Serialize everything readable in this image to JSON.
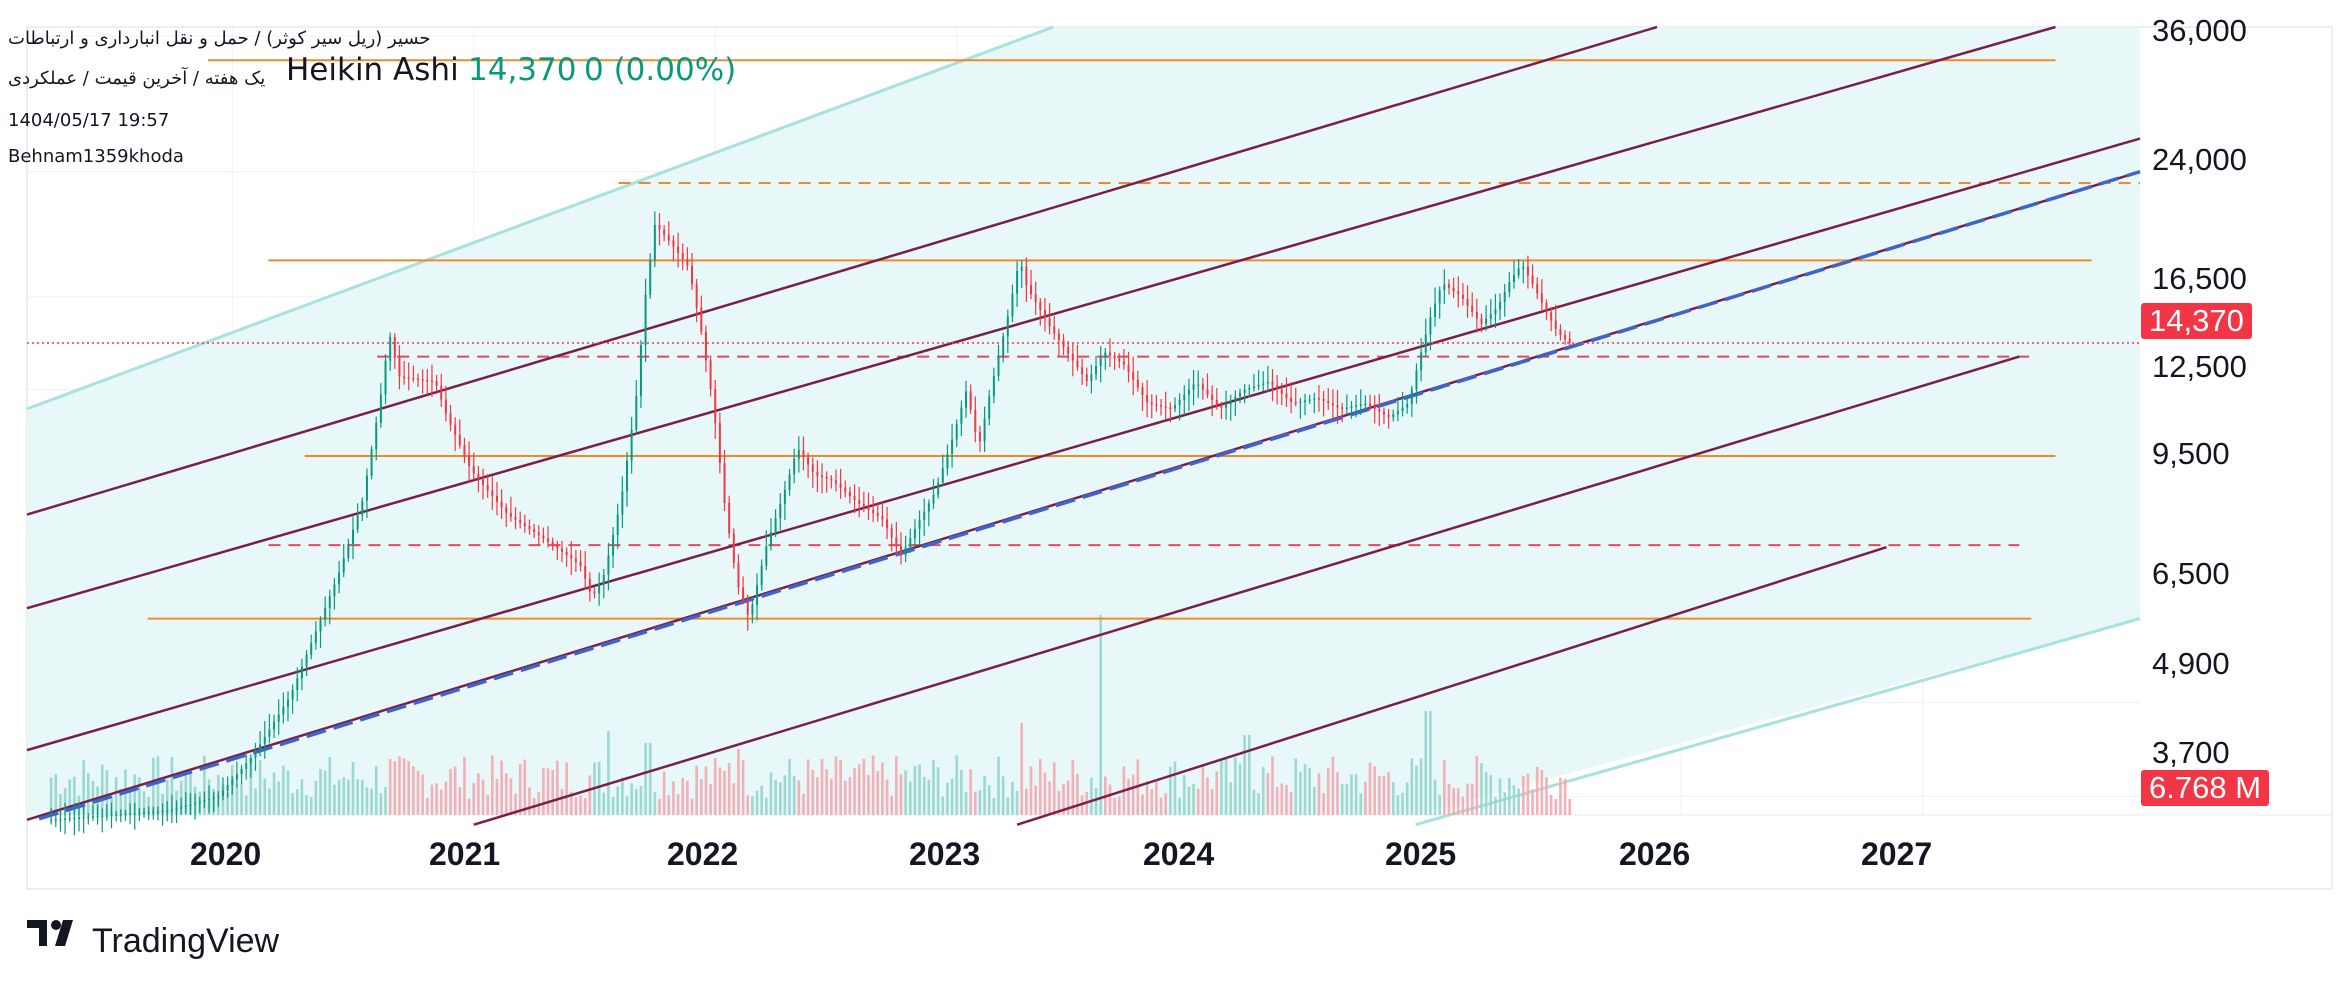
{
  "header": {
    "title_line1": "حسیر (ریل سیر کوثر) / حمل و نقل انبارداری و ارتباطات",
    "title_line2": "یک هفته / آخرین قیمت / عملکردی",
    "style": "Heikin Ashi",
    "last": "14,370",
    "change": "0 (0.00%)",
    "timestamp": "1404/05/17 19:57",
    "author": "Behnam1359khoda"
  },
  "price_tag": "14,370",
  "volume_tag": "6.768 M",
  "footer": {
    "brand": "TradingView"
  },
  "colors": {
    "up": "#089981",
    "down": "#f23645",
    "channel_fill": "#e8f8f8",
    "channel_border": "#a8e2dd",
    "channel_lines": "#7b1f4a",
    "horizontal_levels": "#ef8a2a",
    "dashed_levels": "#e04a5a",
    "trend_dashed": "#3f63c9"
  },
  "chart_data": {
    "type": "candlestick",
    "style": "Heikin Ashi",
    "interval": "1 week",
    "scale": "log",
    "y_ticks": [
      "36,000",
      "24,000",
      "16,500",
      "12,500",
      "9,500",
      "6,500",
      "4,900",
      "3,700"
    ],
    "y_tick_values": [
      36000,
      24000,
      16500,
      12500,
      9500,
      6500,
      4900,
      3700
    ],
    "x_ticks": [
      "2020",
      "2021",
      "2022",
      "2023",
      "2024",
      "2025",
      "2026",
      "2027"
    ],
    "x_tick_values": [
      2020,
      2021,
      2022,
      2023,
      2024,
      2025,
      2026,
      2027
    ],
    "xlim": [
      2019.15,
      2027.9
    ],
    "ylim": [
      3500,
      37000
    ],
    "last_price": 14370,
    "volume_last": "6.768 M",
    "price_path": [
      [
        2019.25,
        3450
      ],
      [
        2019.5,
        3500
      ],
      [
        2019.75,
        3550
      ],
      [
        2019.95,
        3700
      ],
      [
        2020.1,
        4200
      ],
      [
        2020.25,
        5000
      ],
      [
        2020.35,
        6000
      ],
      [
        2020.45,
        7200
      ],
      [
        2020.55,
        9000
      ],
      [
        2020.62,
        12000
      ],
      [
        2020.66,
        14800
      ],
      [
        2020.7,
        13000
      ],
      [
        2020.85,
        12800
      ],
      [
        2020.9,
        11500
      ],
      [
        2021.0,
        9800
      ],
      [
        2021.15,
        8600
      ],
      [
        2021.3,
        8000
      ],
      [
        2021.45,
        7400
      ],
      [
        2021.5,
        6700
      ],
      [
        2021.55,
        7200
      ],
      [
        2021.62,
        9000
      ],
      [
        2021.68,
        12000
      ],
      [
        2021.72,
        16500
      ],
      [
        2021.76,
        20500
      ],
      [
        2021.82,
        19500
      ],
      [
        2021.9,
        18000
      ],
      [
        2021.95,
        15000
      ],
      [
        2022.0,
        12000
      ],
      [
        2022.05,
        8800
      ],
      [
        2022.1,
        7000
      ],
      [
        2022.15,
        6300
      ],
      [
        2022.22,
        7800
      ],
      [
        2022.3,
        9300
      ],
      [
        2022.35,
        10500
      ],
      [
        2022.42,
        9700
      ],
      [
        2022.5,
        9500
      ],
      [
        2022.6,
        8900
      ],
      [
        2022.7,
        8500
      ],
      [
        2022.78,
        7600
      ],
      [
        2022.85,
        8400
      ],
      [
        2022.92,
        9200
      ],
      [
        2023.0,
        11000
      ],
      [
        2023.05,
        12500
      ],
      [
        2023.1,
        10500
      ],
      [
        2023.15,
        12500
      ],
      [
        2023.22,
        15500
      ],
      [
        2023.27,
        18500
      ],
      [
        2023.3,
        17000
      ],
      [
        2023.4,
        15000
      ],
      [
        2023.5,
        13500
      ],
      [
        2023.55,
        12800
      ],
      [
        2023.62,
        14000
      ],
      [
        2023.7,
        13500
      ],
      [
        2023.8,
        12000
      ],
      [
        2023.9,
        11800
      ],
      [
        2024.0,
        12800
      ],
      [
        2024.1,
        11800
      ],
      [
        2024.2,
        12500
      ],
      [
        2024.3,
        12800
      ],
      [
        2024.4,
        12000
      ],
      [
        2024.5,
        12200
      ],
      [
        2024.6,
        11800
      ],
      [
        2024.7,
        12000
      ],
      [
        2024.8,
        11500
      ],
      [
        2024.88,
        12000
      ],
      [
        2024.92,
        13500
      ],
      [
        2024.97,
        15500
      ],
      [
        2025.02,
        17200
      ],
      [
        2025.1,
        16500
      ],
      [
        2025.18,
        15200
      ],
      [
        2025.25,
        16000
      ],
      [
        2025.3,
        17300
      ],
      [
        2025.35,
        18200
      ],
      [
        2025.4,
        17000
      ],
      [
        2025.45,
        15800
      ],
      [
        2025.5,
        14800
      ],
      [
        2025.55,
        14370
      ]
    ],
    "horizontal_levels": [
      {
        "price": 33500,
        "from": 2019.9,
        "to": 2027.55,
        "style": "solid"
      },
      {
        "price": 23200,
        "from": 2021.6,
        "to": 2027.9,
        "style": "dashed"
      },
      {
        "price": 18400,
        "from": 2020.15,
        "to": 2027.7,
        "style": "solid"
      },
      {
        "price": 13800,
        "from": 2020.6,
        "to": 2027.45,
        "style": "dashed"
      },
      {
        "price": 10250,
        "from": 2020.3,
        "to": 2027.55,
        "style": "solid"
      },
      {
        "price": 7850,
        "from": 2020.15,
        "to": 2027.4,
        "style": "dashed"
      },
      {
        "price": 6300,
        "from": 2019.65,
        "to": 2027.45,
        "style": "solid"
      }
    ],
    "channel": {
      "upper": [
        [
          2019.15,
          11800
        ],
        [
          2023.4,
          37000
        ]
      ],
      "lower": [
        [
          2024.9,
          3400
        ],
        [
          2027.9,
          6300
        ]
      ]
    },
    "channel_lines": [
      [
        [
          2019.15,
          8600
        ],
        [
          2025.9,
          37000
        ]
      ],
      [
        [
          2019.15,
          6500
        ],
        [
          2027.55,
          37000
        ]
      ],
      [
        [
          2019.15,
          4250
        ],
        [
          2027.9,
          26500
        ]
      ],
      [
        [
          2019.15,
          3450
        ],
        [
          2027.9,
          24000
        ]
      ],
      [
        [
          2021.0,
          3400
        ],
        [
          2027.4,
          13800
        ]
      ],
      [
        [
          2023.25,
          3400
        ],
        [
          2026.85,
          7800
        ]
      ]
    ],
    "trend_dashed": [
      [
        2019.2,
        3460
      ],
      [
        2027.9,
        24000
      ]
    ],
    "volume": {
      "last": "6.768 M",
      "peaks": [
        [
          2020.66,
          0.28
        ],
        [
          2021.55,
          0.42
        ],
        [
          2021.72,
          0.36
        ],
        [
          2022.05,
          0.26
        ],
        [
          2022.1,
          0.33
        ],
        [
          2023.27,
          0.46
        ],
        [
          2023.6,
          1.0
        ],
        [
          2024.2,
          0.4
        ],
        [
          2024.95,
          0.52
        ],
        [
          2025.4,
          0.24
        ]
      ]
    }
  }
}
